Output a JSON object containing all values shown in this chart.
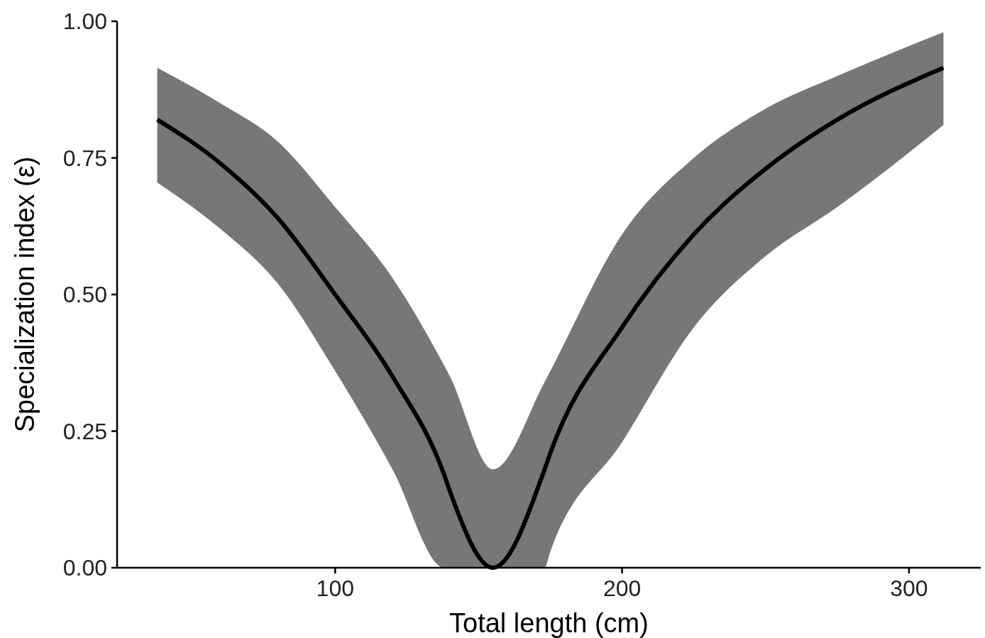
{
  "chart_data": {
    "type": "line",
    "xlabel": "Total length (cm)",
    "ylabel": "Specialization index (ε)",
    "x": [
      38,
      60,
      80,
      100,
      120,
      138,
      140,
      155,
      173,
      175,
      200,
      225,
      250,
      275,
      312
    ],
    "series": [
      {
        "color": "#000000",
        "values": [
          0.82,
          0.74,
          0.64,
          0.5,
          0.35,
          0.17,
          0.14,
          0,
          0.18,
          0.21,
          0.44,
          0.61,
          0.73,
          0.82,
          0.915
        ],
        "lower": [
          0.705,
          0.62,
          0.52,
          0.36,
          0.18,
          0,
          0,
          0,
          0,
          0.03,
          0.23,
          0.44,
          0.57,
          0.66,
          0.81
        ],
        "upper": [
          0.915,
          0.85,
          0.78,
          0.66,
          0.53,
          0.37,
          0.35,
          0.18,
          0.34,
          0.36,
          0.61,
          0.75,
          0.84,
          0.9,
          0.98
        ]
      }
    ],
    "xlim": [
      24,
      325
    ],
    "xticks": [
      100,
      200,
      300
    ],
    "ylim": [
      0,
      1
    ],
    "yticks": [
      {
        "value": 0,
        "label": "0.00"
      },
      {
        "value": 0.25,
        "label": "0.25"
      },
      {
        "value": 0.5,
        "label": "0.50"
      },
      {
        "value": 0.75,
        "label": "0.75"
      },
      {
        "value": 1,
        "label": "1.00"
      }
    ],
    "grid": false,
    "marker": "none",
    "line_style": "solid"
  }
}
